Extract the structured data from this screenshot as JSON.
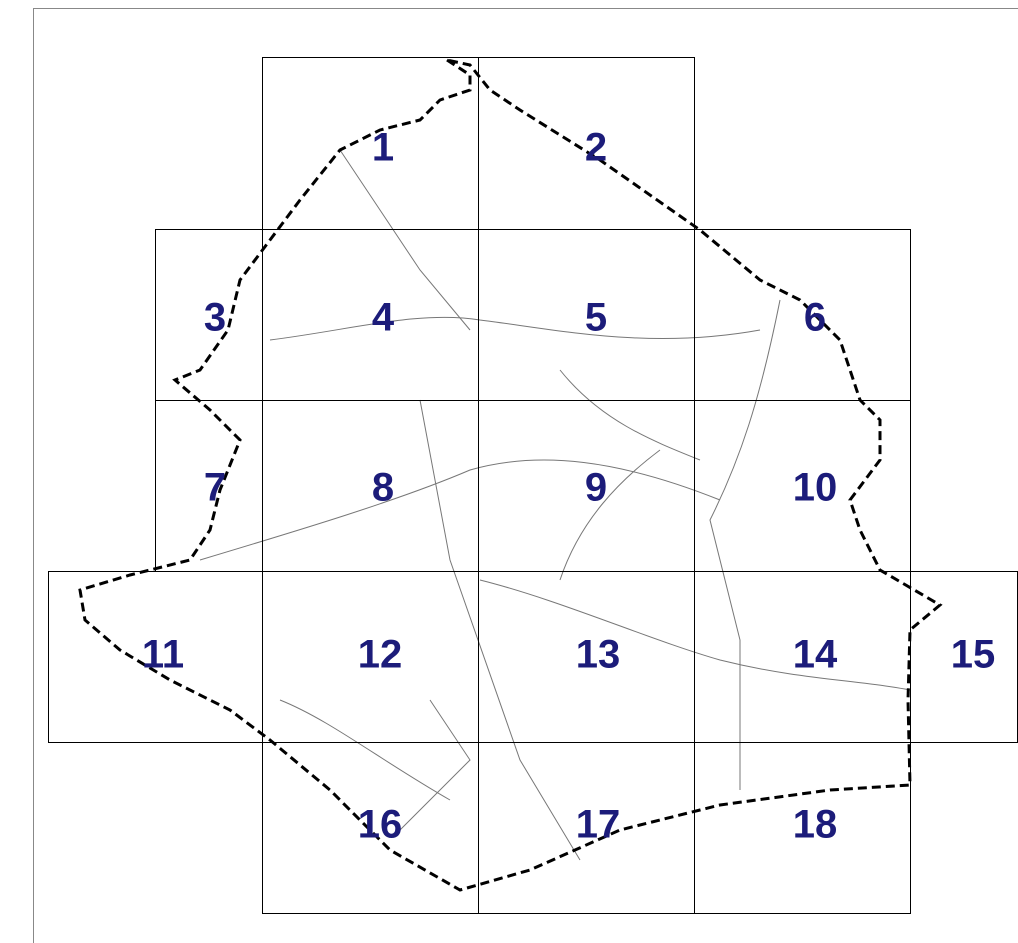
{
  "tiles": [
    {
      "label": "1"
    },
    {
      "label": "2"
    },
    {
      "label": "3"
    },
    {
      "label": "4"
    },
    {
      "label": "5"
    },
    {
      "label": "6"
    },
    {
      "label": "7"
    },
    {
      "label": "8"
    },
    {
      "label": "9"
    },
    {
      "label": "10"
    },
    {
      "label": "11"
    },
    {
      "label": "12"
    },
    {
      "label": "13"
    },
    {
      "label": "14"
    },
    {
      "label": "15"
    },
    {
      "label": "16"
    },
    {
      "label": "17"
    },
    {
      "label": "18"
    }
  ]
}
